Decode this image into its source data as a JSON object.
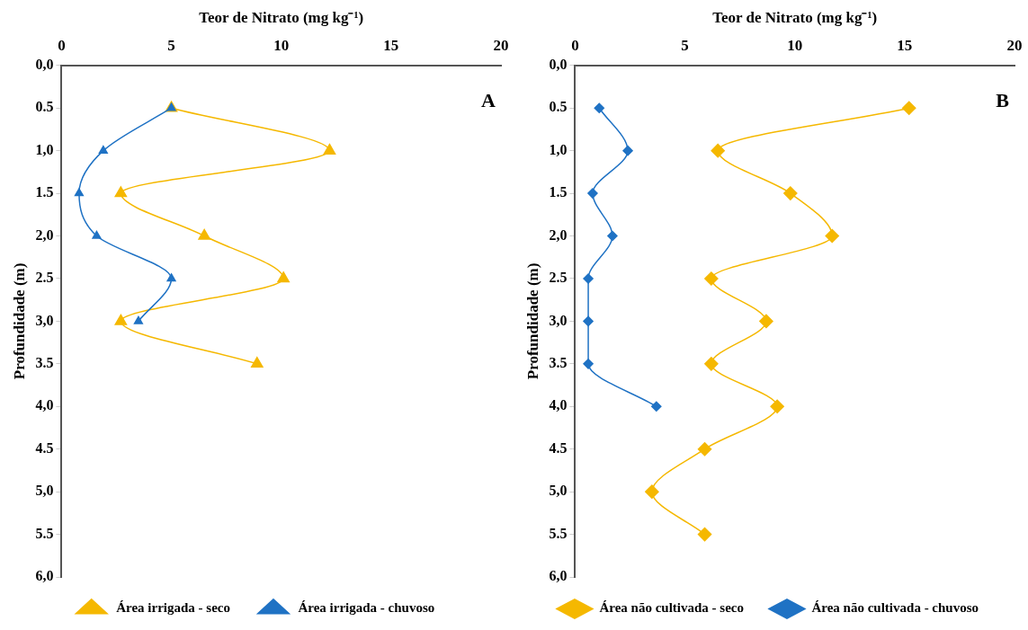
{
  "chart_data": [
    {
      "type": "line",
      "xlabel": "Teor de Nitrato (mg kg⁻¹)",
      "ylabel": "Profundidade (m)",
      "annotations": [
        "A"
      ],
      "xlim": [
        0,
        20
      ],
      "xticks": [
        0,
        5,
        10,
        15,
        20
      ],
      "ylim": [
        6,
        0
      ],
      "yticks": [
        {
          "value": 0,
          "label": "0,0"
        },
        {
          "value": 0.5,
          "label": "0.5"
        },
        {
          "value": 1,
          "label": "1,0"
        },
        {
          "value": 1.5,
          "label": "1.5"
        },
        {
          "value": 2,
          "label": "2,0"
        },
        {
          "value": 2.5,
          "label": "2.5"
        },
        {
          "value": 3,
          "label": "3,0"
        },
        {
          "value": 3.5,
          "label": "3.5"
        },
        {
          "value": 4,
          "label": "4,0"
        },
        {
          "value": 4.5,
          "label": "4.5"
        },
        {
          "value": 5,
          "label": "5,0"
        },
        {
          "value": 5.5,
          "label": "5.5"
        },
        {
          "value": 6,
          "label": "6,0"
        }
      ],
      "grid": false,
      "legend": "bottom",
      "marker": "triangle",
      "series": [
        {
          "name": "Área irrigada - seco",
          "color": "#f5b800",
          "x": [
            5.0,
            12.2,
            2.7,
            6.5,
            10.1,
            2.7,
            8.9
          ],
          "values": [
            0.5,
            1.0,
            1.5,
            2.0,
            2.5,
            3.0,
            3.5
          ]
        },
        {
          "name": "Área irrigada - chuvoso",
          "color": "#1f72c4",
          "x": [
            5.0,
            1.9,
            0.8,
            1.6,
            5.0,
            3.5
          ],
          "values": [
            0.5,
            1.0,
            1.5,
            2.0,
            2.5,
            3.0
          ]
        }
      ]
    },
    {
      "type": "line",
      "xlabel": "Teor de Nitrato (mg kg⁻¹)",
      "ylabel": "Profundidade (m)",
      "annotations": [
        "B"
      ],
      "xlim": [
        0,
        20
      ],
      "xticks": [
        0,
        5,
        10,
        15,
        20
      ],
      "ylim": [
        6,
        0
      ],
      "yticks": [
        {
          "value": 0,
          "label": "0,0"
        },
        {
          "value": 0.5,
          "label": "0.5"
        },
        {
          "value": 1,
          "label": "1,0"
        },
        {
          "value": 1.5,
          "label": "1.5"
        },
        {
          "value": 2,
          "label": "2,0"
        },
        {
          "value": 2.5,
          "label": "2.5"
        },
        {
          "value": 3,
          "label": "3,0"
        },
        {
          "value": 3.5,
          "label": "3.5"
        },
        {
          "value": 4,
          "label": "4,0"
        },
        {
          "value": 4.5,
          "label": "4.5"
        },
        {
          "value": 5,
          "label": "5,0"
        },
        {
          "value": 5.5,
          "label": "5.5"
        },
        {
          "value": 6,
          "label": "6,0"
        }
      ],
      "grid": false,
      "legend": "bottom",
      "marker": "diamond",
      "series": [
        {
          "name": "Área não cultivada - seco",
          "color": "#f5b800",
          "x": [
            15.2,
            6.5,
            9.8,
            11.7,
            6.2,
            8.7,
            6.2,
            9.2,
            5.9,
            3.5,
            5.9
          ],
          "values": [
            0.5,
            1.0,
            1.5,
            2.0,
            2.5,
            3.0,
            3.5,
            4.0,
            4.5,
            5.0,
            5.5
          ]
        },
        {
          "name": "Área não cultivada - chuvoso",
          "color": "#1f72c4",
          "x": [
            1.1,
            2.4,
            0.8,
            1.7,
            0.6,
            0.6,
            0.6,
            3.7
          ],
          "values": [
            0.5,
            1.0,
            1.5,
            2.0,
            2.5,
            3.0,
            3.5,
            4.0
          ]
        }
      ]
    }
  ]
}
